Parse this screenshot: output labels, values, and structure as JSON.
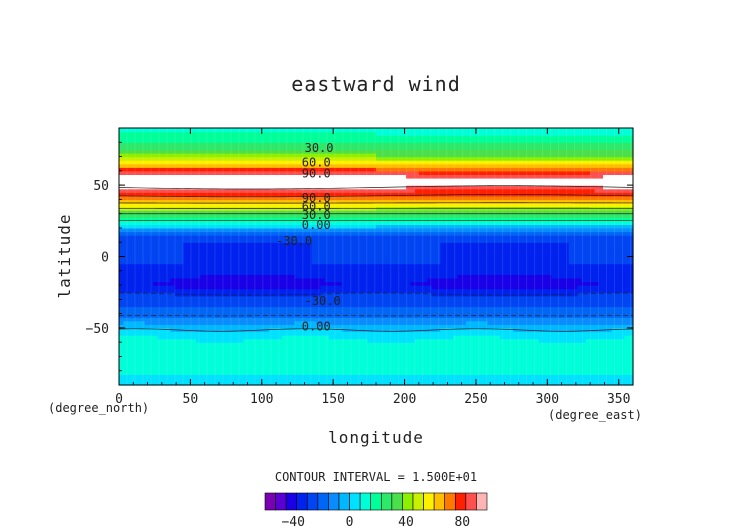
{
  "chart_data": {
    "type": "heatmap",
    "title": "eastward wind",
    "xlabel": "longitude",
    "ylabel": "latitude",
    "x_unit": "(degree_east)",
    "y_unit": "(degree_north)",
    "xlim": [
      0,
      360
    ],
    "ylim": [
      -90,
      90
    ],
    "x_ticks": [
      0,
      50,
      100,
      150,
      200,
      250,
      300,
      350
    ],
    "y_ticks": [
      -50,
      0,
      50
    ],
    "contour_interval_text": "CONTOUR INTERVAL = 1.500E+01",
    "contour_labels": [
      {
        "text": "30.0",
        "lon": 130,
        "lat": 76
      },
      {
        "text": "60.0",
        "lon": 128,
        "lat": 66
      },
      {
        "text": "90.0",
        "lon": 128,
        "lat": 58
      },
      {
        "text": "90.0",
        "lon": 128,
        "lat": 41
      },
      {
        "text": "60.0",
        "lon": 128,
        "lat": 35
      },
      {
        "text": "30.0",
        "lon": 128,
        "lat": 29
      },
      {
        "text": "0.00",
        "lon": 128,
        "lat": 22
      },
      {
        "text": "-30.0",
        "lon": 110,
        "lat": 11
      },
      {
        "text": "-30.0",
        "lon": 130,
        "lat": -31
      },
      {
        "text": "0.00",
        "lon": 128,
        "lat": -49
      }
    ],
    "profile": {
      "lat": [
        -90,
        -80,
        -70,
        -60,
        -55,
        -50,
        -45,
        -40,
        -35,
        -30,
        -25,
        -20,
        -15,
        -10,
        -5,
        0,
        5,
        10,
        15,
        20,
        25,
        30,
        35,
        40,
        45,
        50,
        55,
        60,
        65,
        70,
        75,
        80,
        85,
        90
      ],
      "u": [
        5,
        8,
        10,
        10,
        5,
        -2,
        -10,
        -17,
        -22,
        -25,
        -32,
        -40,
        -38,
        -32,
        -30,
        -30,
        -30,
        -30,
        -22,
        -5,
        15,
        30,
        50,
        70,
        80,
        95,
        95,
        80,
        60,
        40,
        30,
        22,
        16,
        12
      ]
    },
    "colorbar": {
      "levels": [
        -52.5,
        -45,
        -37.5,
        -30,
        -22.5,
        -15,
        -7.5,
        0,
        7.5,
        15,
        22.5,
        30,
        37.5,
        45,
        52.5,
        60,
        67.5,
        75,
        82.5,
        90
      ],
      "colors": [
        "#7a00b4",
        "#5a00d2",
        "#1a00e6",
        "#0022ee",
        "#0044f2",
        "#0066f6",
        "#0a8cff",
        "#00b8ff",
        "#00e0ff",
        "#00ffd8",
        "#00ff99",
        "#2ee86a",
        "#4be04b",
        "#8cf000",
        "#c8f000",
        "#fff000",
        "#ffbe00",
        "#ff7800",
        "#ff2000",
        "#ff5050",
        "#ffb4b4"
      ],
      "ticks": [
        -40,
        0,
        40,
        80
      ],
      "high_color": "#ffffff"
    }
  }
}
